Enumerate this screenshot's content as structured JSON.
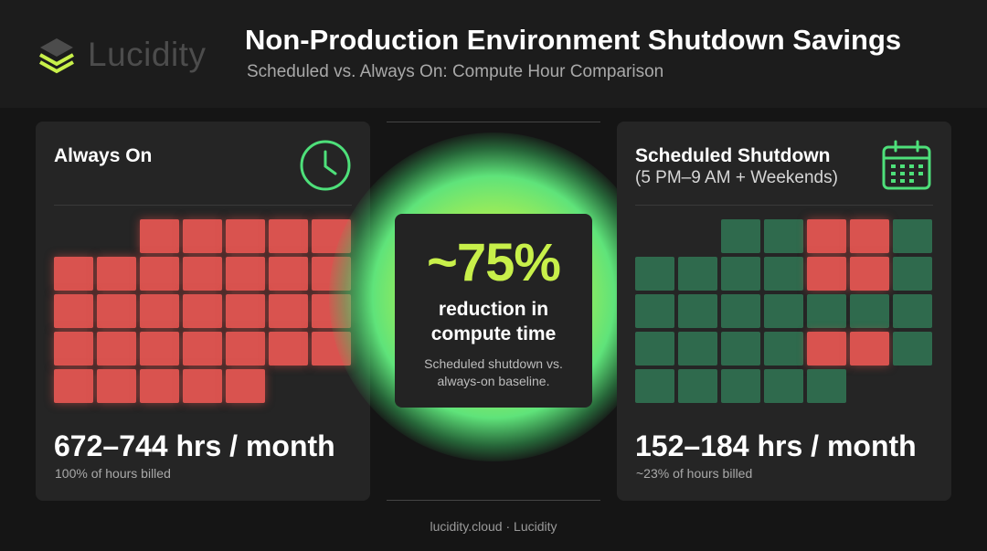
{
  "header": {
    "logo_text": "Lucidity",
    "title": "Non-Production Environment Shutdown Savings",
    "subtitle": "Scheduled vs. Always On: Compute Hour Comparison"
  },
  "left_card": {
    "title": "Always On",
    "icon": "clock-icon",
    "stat": "672–744 hrs / month",
    "note": "100% of hours billed",
    "grid_rows": [
      [
        "",
        "",
        "red",
        "red",
        "red",
        "red",
        "red"
      ],
      [
        "red",
        "red",
        "red",
        "red",
        "red",
        "red",
        "red"
      ],
      [
        "red",
        "red",
        "red",
        "red",
        "red",
        "red",
        "red"
      ],
      [
        "red",
        "red",
        "red",
        "red",
        "red",
        "red",
        "red"
      ],
      [
        "red",
        "red",
        "red",
        "red",
        "red",
        "",
        ""
      ]
    ]
  },
  "center": {
    "big_number": "~75%",
    "line1": "reduction in",
    "line2": "compute time",
    "note_line1": "Scheduled shutdown vs.",
    "note_line2": "always-on baseline."
  },
  "right_card": {
    "title": "Scheduled Shutdown",
    "subtitle": "(5 PM–9 AM + Weekends)",
    "icon": "calendar-icon",
    "stat": "152–184 hrs / month",
    "note": "~23% of hours billed",
    "grid_rows": [
      [
        "",
        "",
        "green",
        "green",
        "red",
        "red",
        "green"
      ],
      [
        "green",
        "green",
        "green",
        "green",
        "red",
        "red",
        "green"
      ],
      [
        "green",
        "green",
        "green",
        "green",
        "green",
        "green",
        "green"
      ],
      [
        "green",
        "green",
        "green",
        "green",
        "red",
        "red",
        "green"
      ],
      [
        "green",
        "green",
        "green",
        "green",
        "green",
        "",
        ""
      ]
    ]
  },
  "footer": "lucidity.cloud · Lucidity",
  "colors": {
    "billed": "#d9534f",
    "off": "#2f6a4d",
    "accent": "#c8f04a",
    "icon_green": "#4ee07a"
  }
}
